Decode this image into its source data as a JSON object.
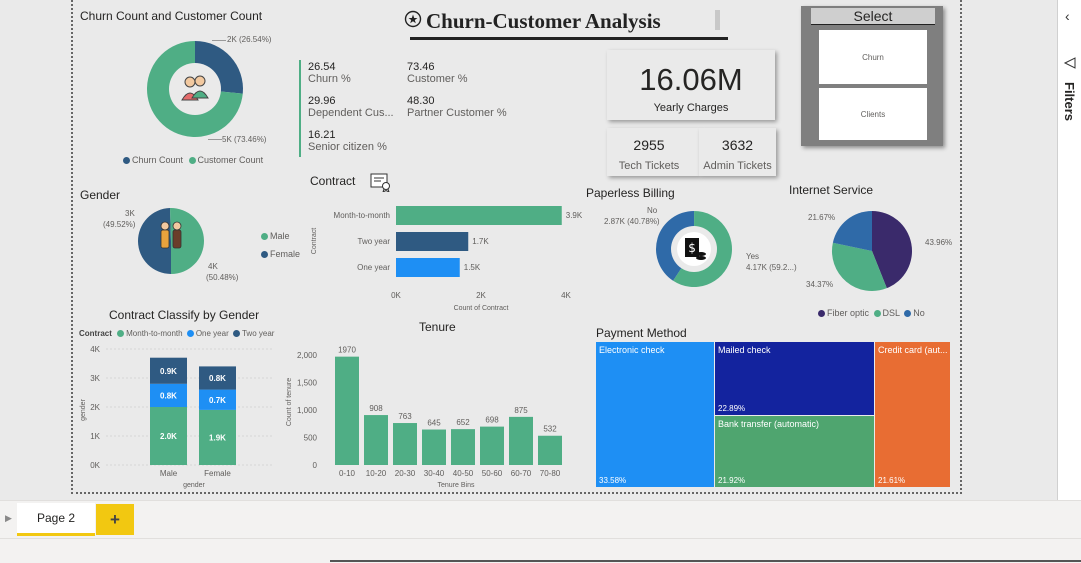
{
  "header": {
    "title": "Churn-Customer Analysis"
  },
  "donut": {
    "title": "Churn Count and Customer Count",
    "label_a": "2K (26.54%)",
    "label_b": "5K (73.46%)",
    "legend": [
      "Churn Count",
      "Customer Count"
    ],
    "colors": {
      "churn": "#2f5a82",
      "customer": "#4fae85"
    }
  },
  "kpis": [
    {
      "value": "26.54",
      "label": "Churn %"
    },
    {
      "value": "29.96",
      "label": "Dependent Cus..."
    },
    {
      "value": "16.21",
      "label": "Senior citizen %"
    },
    {
      "value": "73.46",
      "label": "Customer %"
    },
    {
      "value": "48.30",
      "label": "Partner Customer %"
    }
  ],
  "cards": {
    "yearly_value": "16.06M",
    "yearly_label": "Yearly Charges",
    "tech_value": "2955",
    "tech_label": "Tech Tickets",
    "admin_value": "3632",
    "admin_label": "Admin Tickets"
  },
  "slicer": {
    "title": "Select",
    "items": [
      "Churn",
      "Clients"
    ]
  },
  "gender": {
    "title": "Gender",
    "label_female": "3K",
    "label_female_pct": "(49.52%)",
    "label_male": "4K",
    "label_male_pct": "(50.48%)",
    "legend": [
      "Male",
      "Female"
    ]
  },
  "contract_chart": {
    "title": "Contract",
    "ylabel": "Contract",
    "xlabel": "Count of Contract",
    "ticks": [
      "0K",
      "2K",
      "4K"
    ],
    "colors": [
      "#4fae85",
      "#2f5a82",
      "#1e8ff4"
    ]
  },
  "paperless": {
    "title": "Paperless Billing",
    "label_no": "No",
    "label_no_val": "2.87K (40.78%)",
    "label_yes": "Yes",
    "label_yes_val": "4.17K (59.2...)"
  },
  "internet": {
    "title": "Internet Service",
    "label_a": "21.67%",
    "label_b": "43.96%",
    "label_c": "34.37%",
    "legend": [
      "Fiber optic",
      "DSL",
      "No"
    ]
  },
  "stacked": {
    "title": "Contract Classify by Gender",
    "legend_title": "Contract",
    "legend": [
      "Month-to-month",
      "One year",
      "Two year"
    ],
    "yticks": [
      "4K",
      "3K",
      "2K",
      "1K",
      "0K"
    ],
    "ylabel": "gender",
    "xlabel": "gender"
  },
  "tenure": {
    "title": "Tenure",
    "ylabel": "Count of tenure",
    "xlabel": "Tenure Bins",
    "yticks": [
      "2,000",
      "1,500",
      "1,000",
      "500",
      "0"
    ]
  },
  "payment": {
    "title": "Payment Method",
    "items": [
      {
        "name": "Electronic check",
        "pct": "33.58%"
      },
      {
        "name": "Mailed check",
        "pct": "22.89%"
      },
      {
        "name": "Bank transfer (automatic)",
        "pct": "21.92%"
      },
      {
        "name": "Credit card (aut...",
        "pct": "21.61%"
      }
    ]
  },
  "filters_label": "Filters",
  "tabs": {
    "page": "Page 2",
    "add": "+"
  },
  "chart_data": [
    {
      "type": "pie",
      "title": "Churn Count and Customer Count",
      "labels": [
        "Churn Count",
        "Customer Count"
      ],
      "values": [
        26.54,
        73.46
      ]
    },
    {
      "type": "pie",
      "title": "Gender",
      "labels": [
        "Male",
        "Female"
      ],
      "values": [
        50.48,
        49.52
      ]
    },
    {
      "type": "bar",
      "title": "Contract",
      "categories": [
        "Month-to-month",
        "Two year",
        "One year"
      ],
      "values": [
        3.9,
        1.7,
        1.5
      ],
      "value_labels": [
        "3.9K",
        "1.7K",
        "1.5K"
      ],
      "xlabel": "Count of Contract",
      "ylabel": "Contract",
      "xlim": [
        0,
        4
      ]
    },
    {
      "type": "pie",
      "title": "Paperless Billing",
      "labels": [
        "No",
        "Yes"
      ],
      "values": [
        40.78,
        59.22
      ]
    },
    {
      "type": "pie",
      "title": "Internet Service",
      "labels": [
        "Fiber optic",
        "DSL",
        "No"
      ],
      "values": [
        43.96,
        34.37,
        21.67
      ]
    },
    {
      "type": "bar",
      "title": "Contract Classify by Gender",
      "categories": [
        "Male",
        "Female"
      ],
      "series": [
        {
          "name": "Month-to-month",
          "values": [
            2.0,
            1.9
          ]
        },
        {
          "name": "One year",
          "values": [
            0.8,
            0.7
          ]
        },
        {
          "name": "Two year",
          "values": [
            0.9,
            0.8
          ]
        }
      ],
      "value_labels": [
        [
          "2.0K",
          "1.9K"
        ],
        [
          "0.8K",
          "0.7K"
        ],
        [
          "0.9K",
          "0.8K"
        ]
      ],
      "ylim": [
        0,
        4
      ],
      "xlabel": "gender",
      "ylabel": "gender"
    },
    {
      "type": "bar",
      "title": "Tenure",
      "categories": [
        "0-10",
        "10-20",
        "20-30",
        "30-40",
        "40-50",
        "50-60",
        "60-70",
        "70-80"
      ],
      "values": [
        1970,
        908,
        763,
        645,
        652,
        698,
        875,
        532
      ],
      "ylim": [
        0,
        2000
      ],
      "xlabel": "Tenure Bins",
      "ylabel": "Count of tenure"
    },
    {
      "type": "table",
      "title": "Payment Method",
      "labels": [
        "Electronic check",
        "Mailed check",
        "Bank transfer (automatic)",
        "Credit card (aut..."
      ],
      "values": [
        33.58,
        22.89,
        21.92,
        21.61
      ]
    }
  ]
}
